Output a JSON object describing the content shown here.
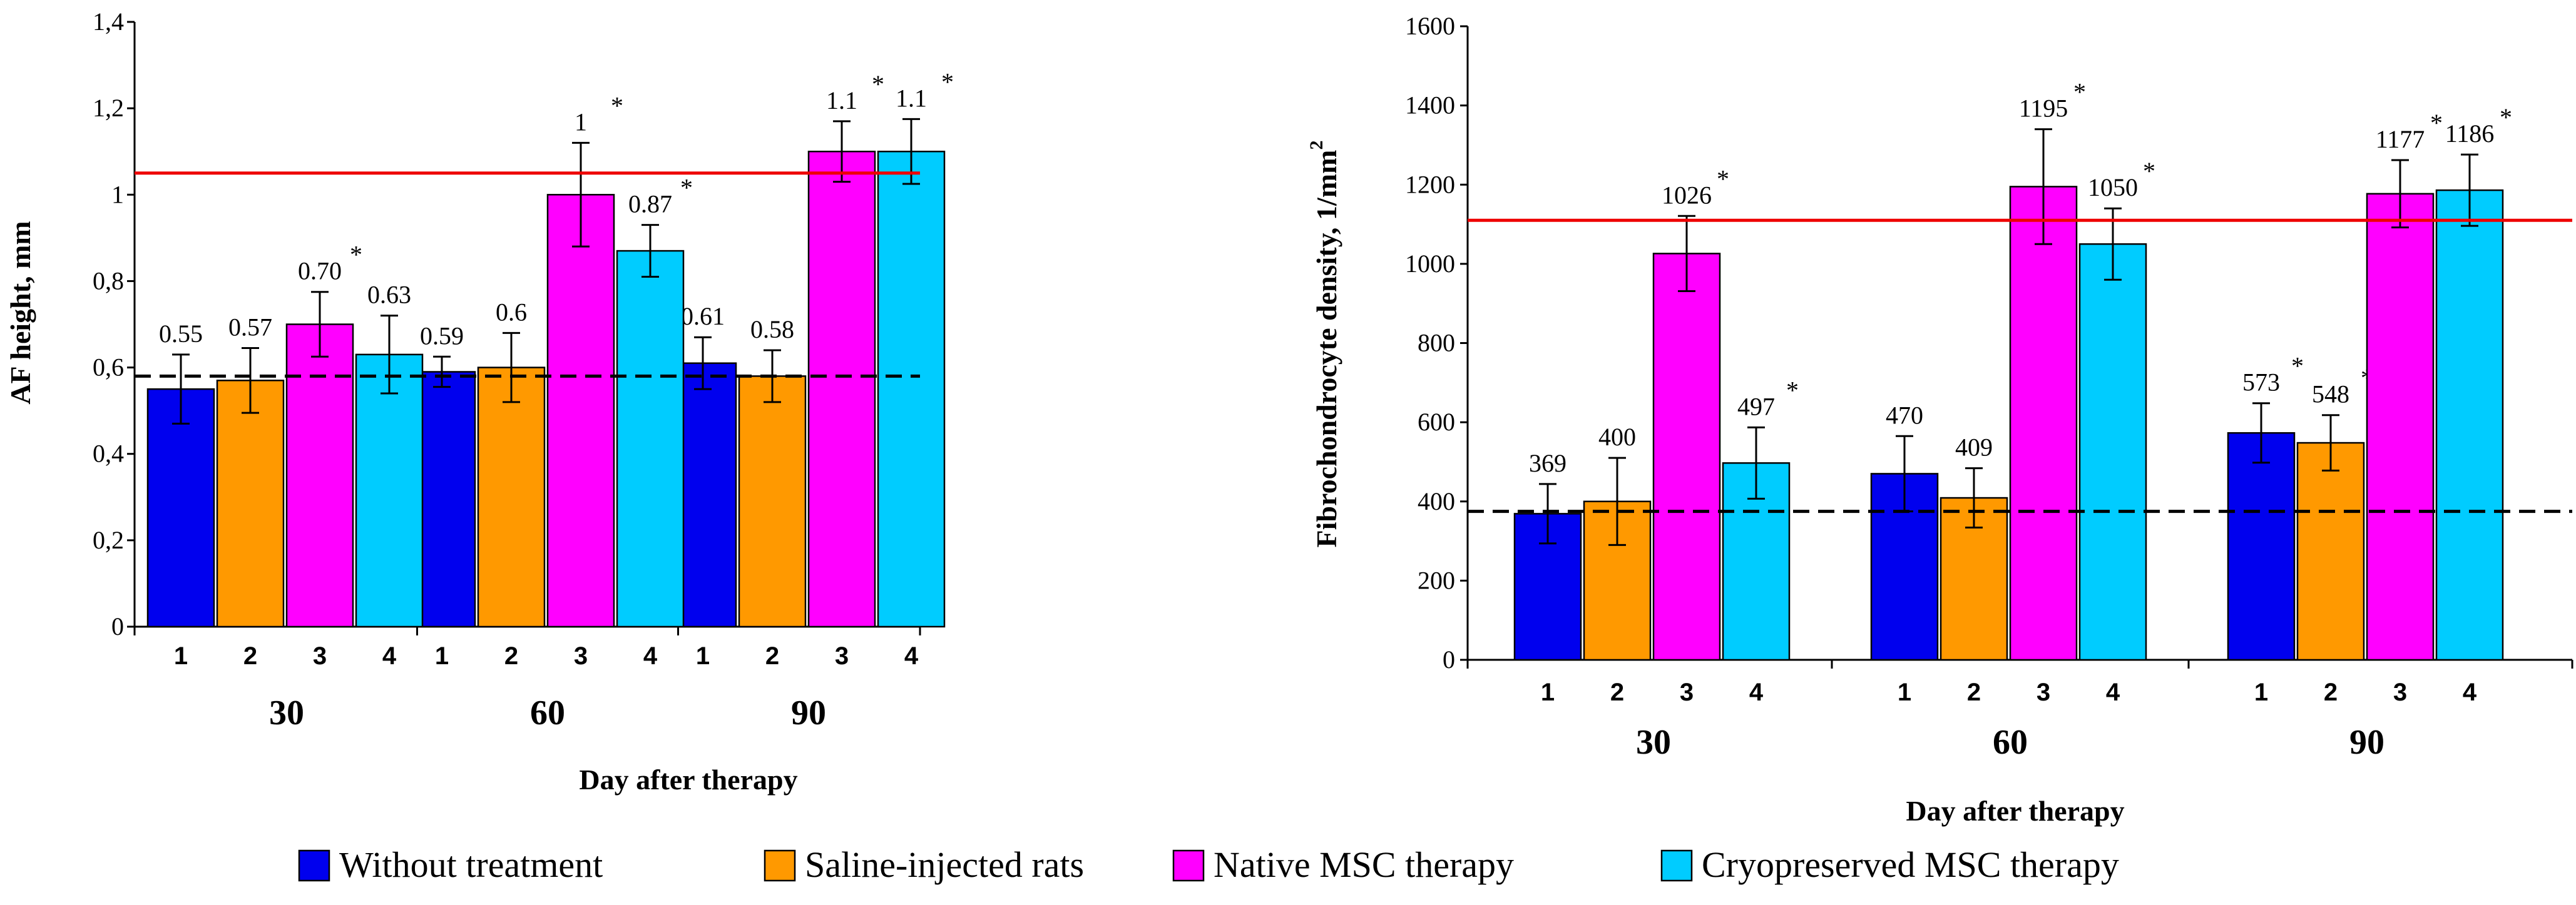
{
  "colors": {
    "without_treatment": "#0000ee",
    "saline": "#ff9900",
    "native_msc": "#ff00ff",
    "cryo_msc": "#00ccff",
    "reference_line": "#ee0000",
    "baseline_line": "#000000"
  },
  "legend": [
    {
      "label": "Without treatment",
      "color": "#0000ee"
    },
    {
      "label": "Saline-injected rats",
      "color": "#ff9900"
    },
    {
      "label": "Native MSC therapy",
      "color": "#ff00ff"
    },
    {
      "label": "Cryopreserved MSC therapy",
      "color": "#00ccff"
    }
  ],
  "chart_data": [
    {
      "type": "bar",
      "title": "",
      "ylabel": "AF height, mm",
      "xlabel": "Day after therapy",
      "ylim": [
        0,
        1.4
      ],
      "yticks": [
        0,
        0.2,
        0.4,
        0.6,
        0.8,
        1.0,
        1.2,
        1.4
      ],
      "ytick_labels": [
        "0",
        "0,2",
        "0,4",
        "0,6",
        "0,8",
        "1",
        "1,2",
        "1,4"
      ],
      "groups": [
        "30",
        "60",
        "90"
      ],
      "sub_categories": [
        "1",
        "2",
        "3",
        "4"
      ],
      "red_reference_value": 1.05,
      "dashed_baseline_value": 0.58,
      "series": [
        {
          "name": "Without treatment",
          "values": [
            0.55,
            0.59,
            0.61
          ],
          "errors": [
            0.08,
            0.035,
            0.06
          ],
          "labels": [
            "0.55",
            "0.59",
            "0.61"
          ],
          "stars": [
            false,
            false,
            false
          ]
        },
        {
          "name": "Saline-injected rats",
          "values": [
            0.57,
            0.6,
            0.58
          ],
          "errors": [
            0.075,
            0.08,
            0.06
          ],
          "labels": [
            "0.57",
            "0.6",
            "0.58"
          ],
          "stars": [
            false,
            false,
            false
          ]
        },
        {
          "name": "Native MSC therapy",
          "values": [
            0.7,
            1.0,
            1.1
          ],
          "errors": [
            0.075,
            0.12,
            0.07
          ],
          "labels": [
            "0.70",
            "1",
            "1.1"
          ],
          "stars": [
            true,
            true,
            true
          ]
        },
        {
          "name": "Cryopreserved MSC therapy",
          "values": [
            0.63,
            0.87,
            1.1
          ],
          "errors": [
            0.09,
            0.06,
            0.075
          ],
          "labels": [
            "0.63",
            "0.87",
            "1.1"
          ],
          "stars": [
            false,
            true,
            true
          ]
        }
      ]
    },
    {
      "type": "bar",
      "title": "",
      "ylabel": "Fibrochondrocyte density, 1/mm",
      "ylabel_sup": "2",
      "xlabel": "Day after therapy",
      "ylim": [
        0,
        1600
      ],
      "yticks": [
        0,
        200,
        400,
        600,
        800,
        1000,
        1200,
        1400,
        1600
      ],
      "ytick_labels": [
        "0",
        "200",
        "400",
        "600",
        "800",
        "1000",
        "1200",
        "1400",
        "1600"
      ],
      "groups": [
        "30",
        "60",
        "90"
      ],
      "sub_categories": [
        "1",
        "2",
        "3",
        "4"
      ],
      "red_reference_value": 1110,
      "dashed_baseline_value": 375,
      "series": [
        {
          "name": "Without treatment",
          "values": [
            369,
            470,
            573
          ],
          "errors": [
            75,
            95,
            75
          ],
          "labels": [
            "369",
            "470",
            "573"
          ],
          "stars": [
            false,
            false,
            true
          ]
        },
        {
          "name": "Saline-injected rats",
          "values": [
            400,
            409,
            548
          ],
          "errors": [
            110,
            75,
            70
          ],
          "labels": [
            "400",
            "409",
            "548"
          ],
          "stars": [
            false,
            false,
            true
          ]
        },
        {
          "name": "Native MSC therapy",
          "values": [
            1026,
            1195,
            1177
          ],
          "errors": [
            95,
            145,
            85
          ],
          "labels": [
            "1026",
            "1195",
            "1177"
          ],
          "stars": [
            true,
            true,
            true
          ]
        },
        {
          "name": "Cryopreserved MSC therapy",
          "values": [
            497,
            1050,
            1186
          ],
          "errors": [
            90,
            90,
            90
          ],
          "labels": [
            "497",
            "1050",
            "1186"
          ],
          "stars": [
            true,
            true,
            true
          ]
        }
      ]
    }
  ]
}
